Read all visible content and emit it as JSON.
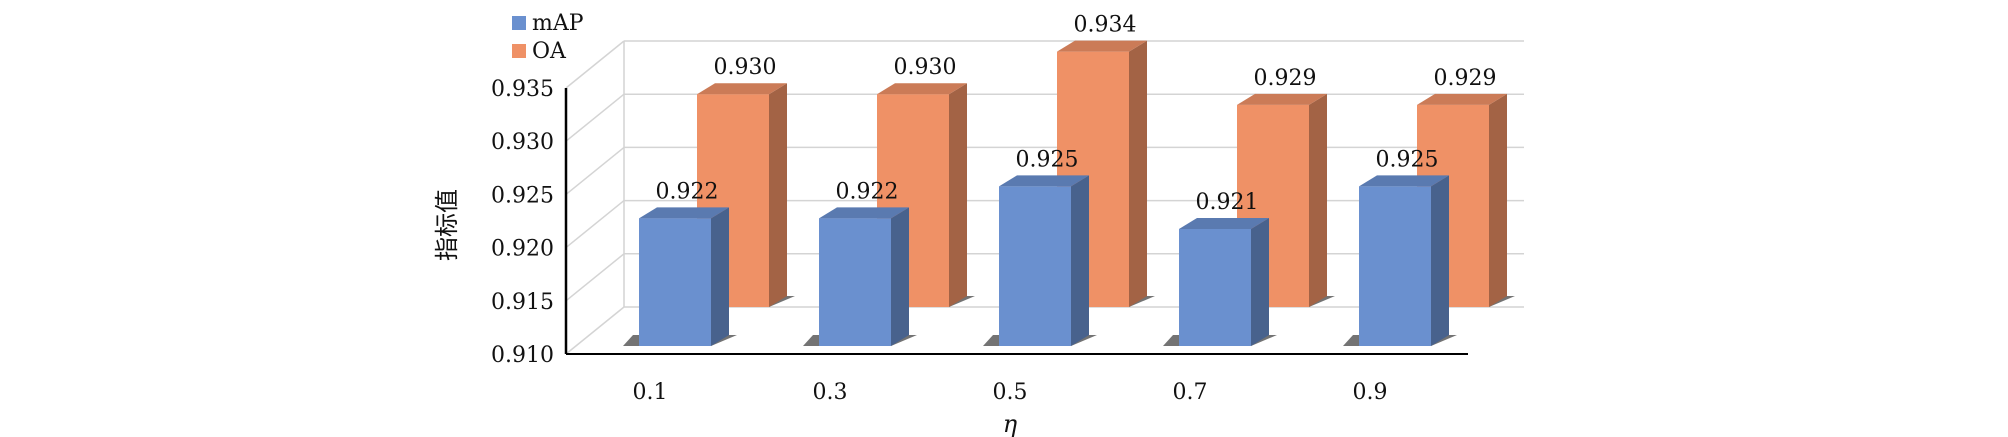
{
  "chart_data": {
    "type": "bar",
    "categories": [
      "0.1",
      "0.3",
      "0.5",
      "0.7",
      "0.9"
    ],
    "series": [
      {
        "name": "mAP",
        "values": [
          0.922,
          0.922,
          0.925,
          0.921,
          0.925
        ],
        "color": "#6a90cf"
      },
      {
        "name": "OA",
        "values": [
          0.93,
          0.93,
          0.934,
          0.929,
          0.929
        ],
        "color": "#ef9166"
      }
    ],
    "data_labels": {
      "mAP": [
        "0.922",
        "0.922",
        "0.925",
        "0.921",
        "0.925"
      ],
      "OA": [
        "0.930",
        "0.930",
        "0.934",
        "0.929",
        "0.929"
      ]
    },
    "ylim": [
      0.91,
      0.935
    ],
    "yticks": [
      "0.910",
      "0.915",
      "0.920",
      "0.925",
      "0.930",
      "0.935"
    ],
    "ylabel": "指标值",
    "xlabel": "η",
    "legend_position": "top-left",
    "grid": true,
    "style": "3d-clustered-column"
  }
}
